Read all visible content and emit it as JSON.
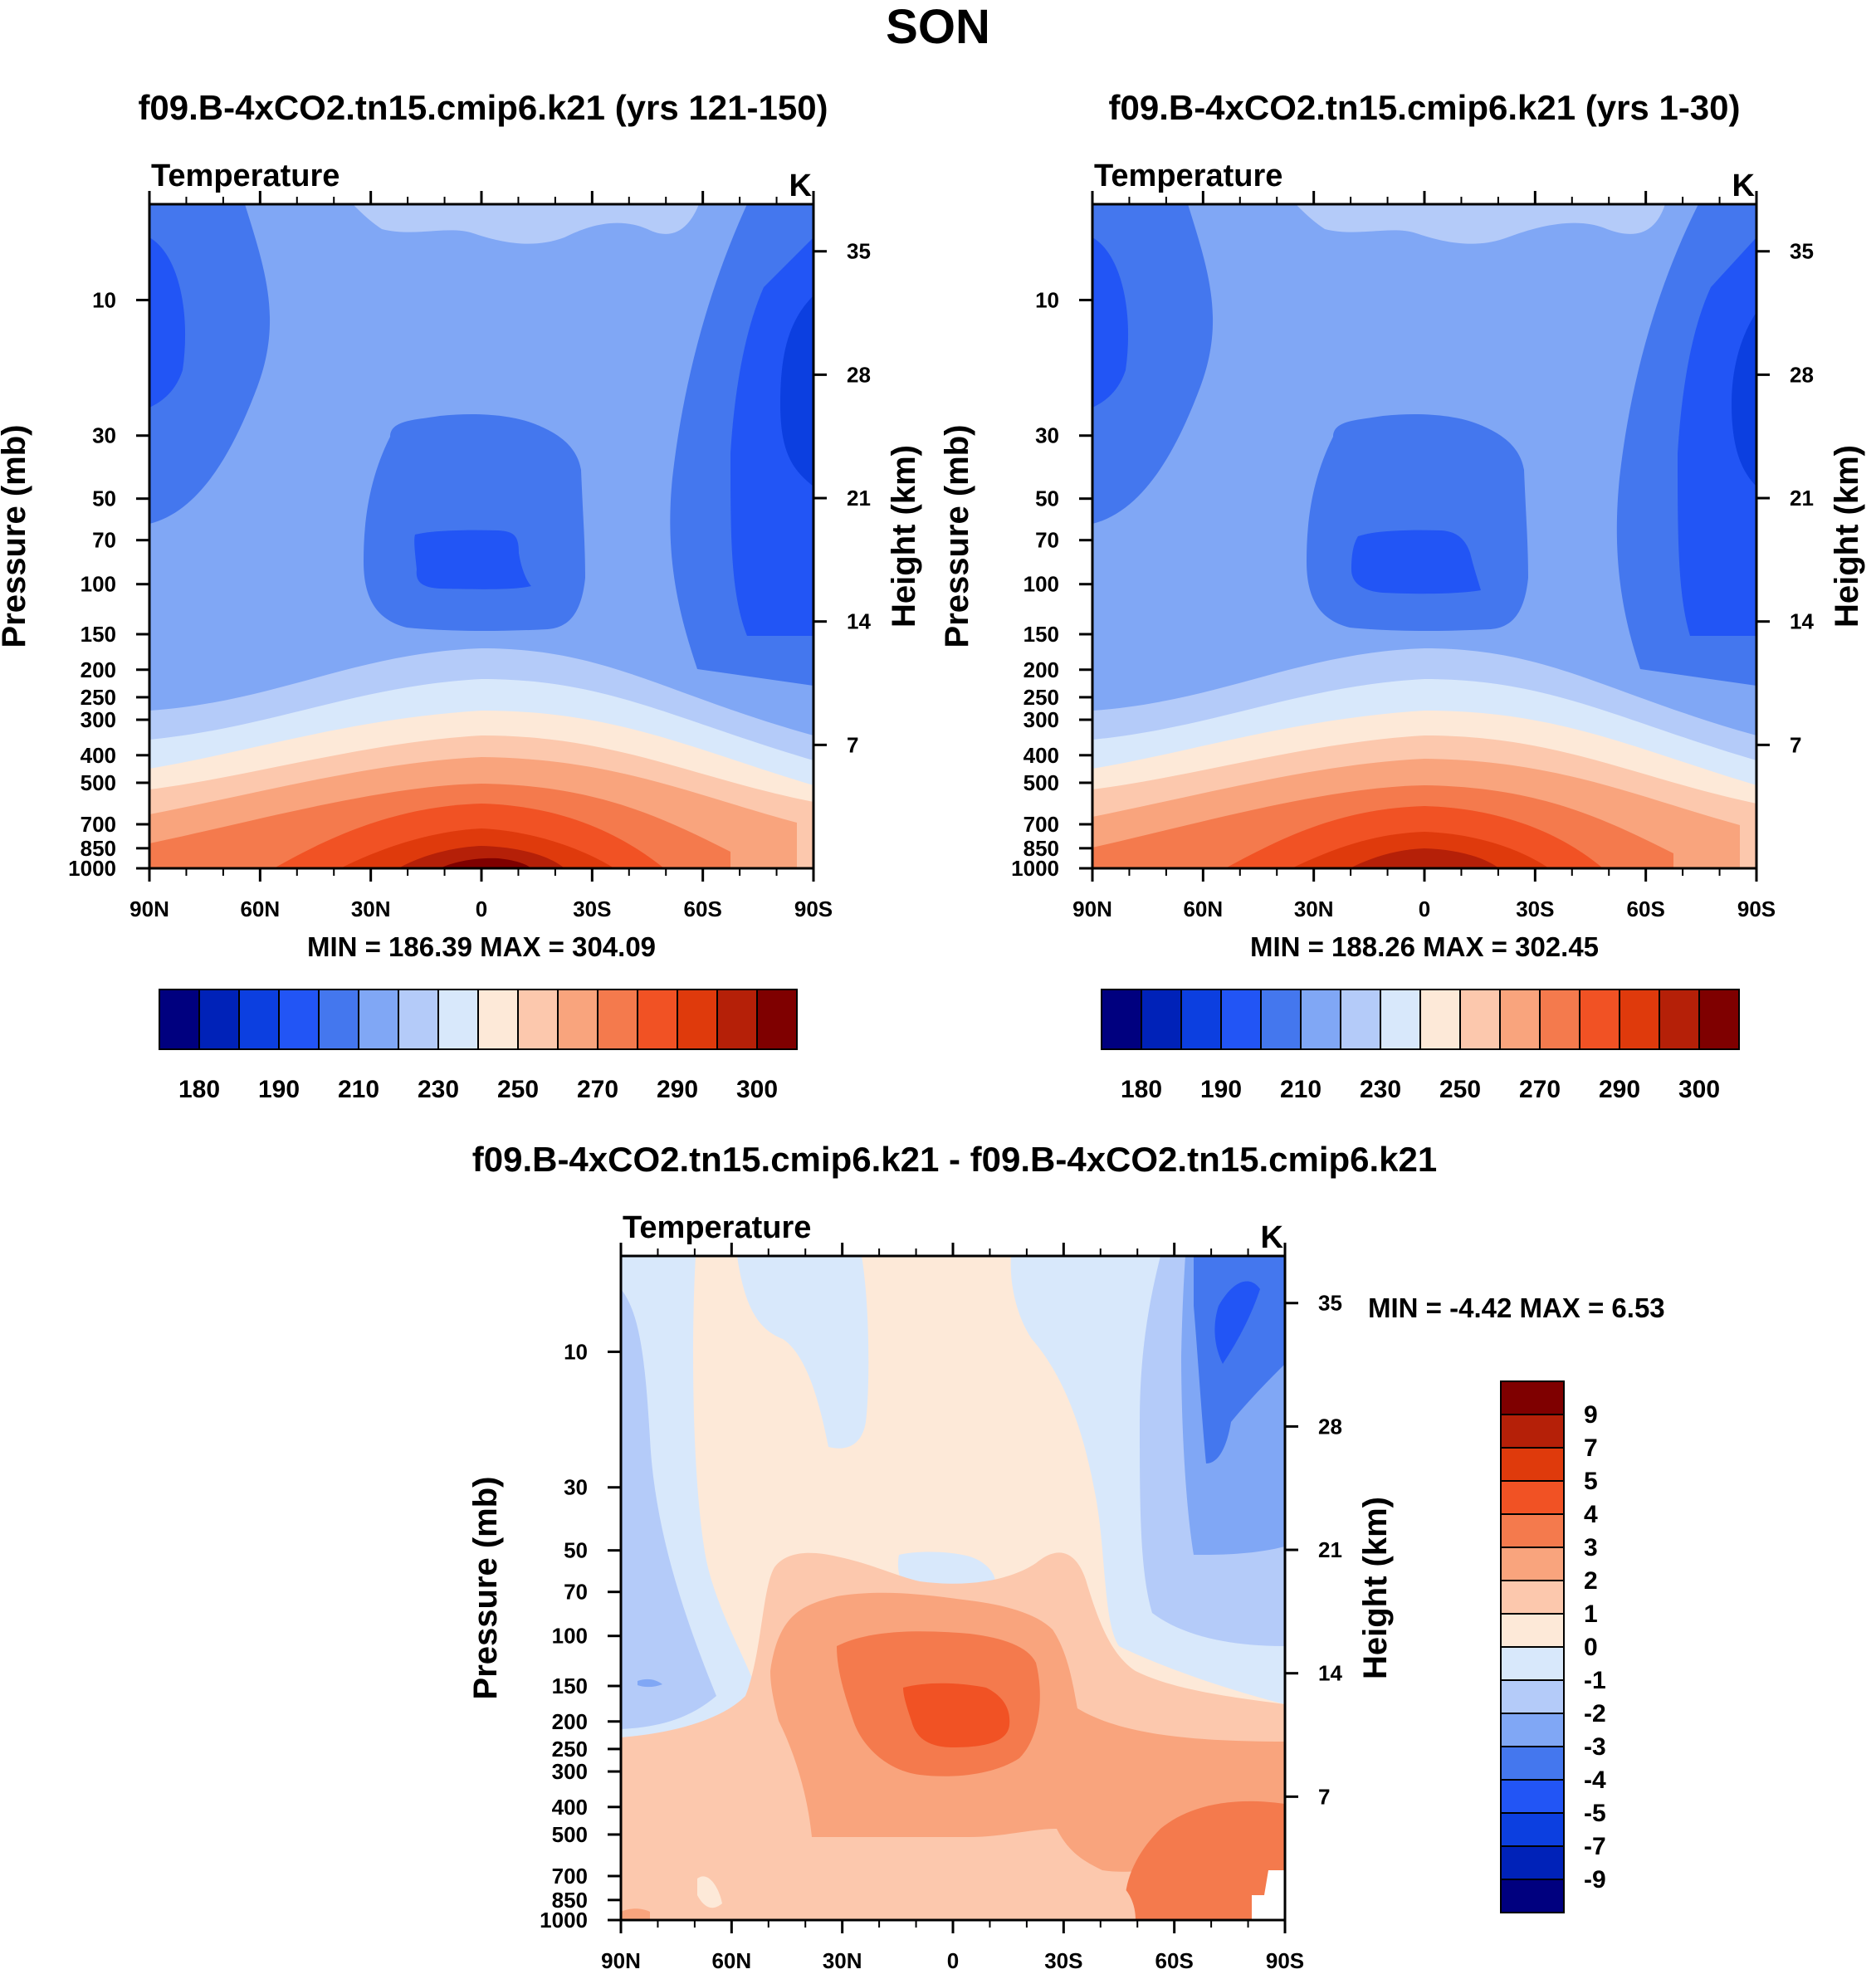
{
  "figure": {
    "title": "SON",
    "palette_cold_to_warm": [
      "#00007f",
      "#0022b8",
      "#0c3fe0",
      "#2255f5",
      "#4477ee",
      "#80a7f5",
      "#b4cbf9",
      "#d8e8fb",
      "#fde9d8",
      "#fcc8ad",
      "#f9a47d",
      "#f47a4d",
      "#f15224",
      "#df3a0c",
      "#b52008",
      "#7f0000"
    ]
  },
  "chart_data": [
    {
      "type": "heatmap",
      "panel": "top-left",
      "title": "f09.B-4xCO2.tn15.cmip6.k21 (yrs 121-150)",
      "variable": "Temperature",
      "units": "K",
      "ylabel": "Pressure (mb)",
      "ylabel_right": "Height (km)",
      "x_ticks": [
        "90N",
        "60N",
        "30N",
        "0",
        "30S",
        "60S",
        "90S"
      ],
      "y_ticks": [
        "10",
        "30",
        "50",
        "70",
        "100",
        "150",
        "200",
        "250",
        "300",
        "400",
        "500",
        "700",
        "850",
        "1000"
      ],
      "y_ticks_right": [
        "35",
        "28",
        "21",
        "14",
        "7"
      ],
      "min": 186.39,
      "max": 304.09,
      "stats_label": "MIN = 186.39  MAX = 304.09",
      "colorbar_labels": [
        "180",
        "190",
        "210",
        "230",
        "250",
        "270",
        "290",
        "300"
      ]
    },
    {
      "type": "heatmap",
      "panel": "top-right",
      "title": "f09.B-4xCO2.tn15.cmip6.k21 (yrs 1-30)",
      "variable": "Temperature",
      "units": "K",
      "ylabel": "Pressure (mb)",
      "ylabel_right": "Height (km)",
      "x_ticks": [
        "90N",
        "60N",
        "30N",
        "0",
        "30S",
        "60S",
        "90S"
      ],
      "y_ticks": [
        "10",
        "30",
        "50",
        "70",
        "100",
        "150",
        "200",
        "250",
        "300",
        "400",
        "500",
        "700",
        "850",
        "1000"
      ],
      "y_ticks_right": [
        "35",
        "28",
        "21",
        "14",
        "7"
      ],
      "min": 188.26,
      "max": 302.45,
      "stats_label": "MIN = 188.26  MAX = 302.45",
      "colorbar_labels": [
        "180",
        "190",
        "210",
        "230",
        "250",
        "270",
        "290",
        "300"
      ]
    },
    {
      "type": "heatmap",
      "panel": "bottom",
      "title": "f09.B-4xCO2.tn15.cmip6.k21 - f09.B-4xCO2.tn15.cmip6.k21",
      "variable": "Temperature",
      "units": "K",
      "ylabel": "Pressure (mb)",
      "ylabel_right": "Height (km)",
      "x_ticks": [
        "90N",
        "60N",
        "30N",
        "0",
        "30S",
        "60S",
        "90S"
      ],
      "y_ticks": [
        "10",
        "30",
        "50",
        "70",
        "100",
        "150",
        "200",
        "250",
        "300",
        "400",
        "500",
        "700",
        "850",
        "1000"
      ],
      "y_ticks_right": [
        "35",
        "28",
        "21",
        "14",
        "7"
      ],
      "min": -4.42,
      "max": 6.53,
      "stats_label": "MIN =  -4.42  MAX =   6.53",
      "colorbar_labels": [
        "9",
        "7",
        "5",
        "4",
        "3",
        "2",
        "1",
        "0",
        "-1",
        "-2",
        "-3",
        "-4",
        "-5",
        "-7",
        "-9"
      ]
    }
  ]
}
